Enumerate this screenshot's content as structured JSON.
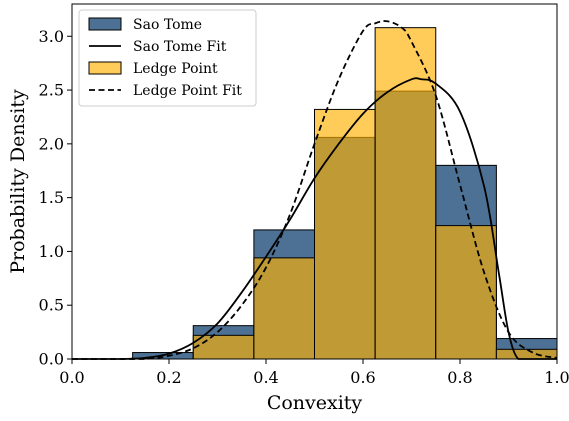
{
  "chart_data": {
    "type": "bar",
    "title": "",
    "xlabel": "Convexity",
    "ylabel": "Probability Density",
    "xlim": [
      0.0,
      1.0
    ],
    "ylim": [
      0.0,
      3.3
    ],
    "xticks": [
      0.0,
      0.2,
      0.4,
      0.6,
      0.8,
      1.0
    ],
    "xtick_labels": [
      "0.0",
      "0.2",
      "0.4",
      "0.6",
      "0.8",
      "1.0"
    ],
    "yticks": [
      0.0,
      0.5,
      1.0,
      1.5,
      2.0,
      2.5,
      3.0
    ],
    "ytick_labels": [
      "0.0",
      "0.5",
      "1.0",
      "1.5",
      "2.0",
      "2.5",
      "3.0"
    ],
    "grid": false,
    "legend_position": "top-left",
    "bin_edges": [
      0.0,
      0.125,
      0.25,
      0.375,
      0.5,
      0.625,
      0.75,
      0.875,
      1.0
    ],
    "series": [
      {
        "name": "Sao Tome",
        "kind": "histogram",
        "color": "#1f4e79",
        "opacity": 0.8,
        "values": [
          0.0,
          0.06,
          0.31,
          1.2,
          2.06,
          2.49,
          1.8,
          0.19
        ]
      },
      {
        "name": "Ledge Point",
        "kind": "histogram",
        "color": "#ffb000",
        "opacity": 0.65,
        "values": [
          0.0,
          0.0,
          0.22,
          0.94,
          2.32,
          3.08,
          1.24,
          0.09
        ]
      },
      {
        "name": "Sao Tome Fit",
        "kind": "line",
        "style": "solid",
        "color": "#000000",
        "x": [
          0.0,
          0.1,
          0.15,
          0.2,
          0.25,
          0.3,
          0.35,
          0.4,
          0.45,
          0.5,
          0.55,
          0.6,
          0.65,
          0.7,
          0.72,
          0.75,
          0.8,
          0.85,
          0.88,
          0.9,
          0.92,
          0.95,
          1.0
        ],
        "y": [
          0.0,
          0.0,
          0.01,
          0.05,
          0.15,
          0.33,
          0.62,
          0.95,
          1.3,
          1.68,
          2.0,
          2.28,
          2.48,
          2.6,
          2.6,
          2.56,
          2.3,
          1.6,
          0.8,
          0.25,
          0.0,
          0.0,
          0.0
        ]
      },
      {
        "name": "Ledge Point Fit",
        "kind": "line",
        "style": "dashed",
        "color": "#000000",
        "x": [
          0.0,
          0.1,
          0.15,
          0.2,
          0.25,
          0.3,
          0.35,
          0.4,
          0.45,
          0.5,
          0.55,
          0.6,
          0.625,
          0.65,
          0.68,
          0.7,
          0.75,
          0.8,
          0.85,
          0.9,
          0.95,
          1.0
        ],
        "y": [
          0.0,
          0.0,
          0.0,
          0.03,
          0.1,
          0.25,
          0.5,
          0.85,
          1.35,
          2.0,
          2.6,
          3.05,
          3.12,
          3.14,
          3.08,
          2.95,
          2.45,
          1.62,
          0.8,
          0.25,
          0.06,
          0.01
        ]
      }
    ]
  }
}
